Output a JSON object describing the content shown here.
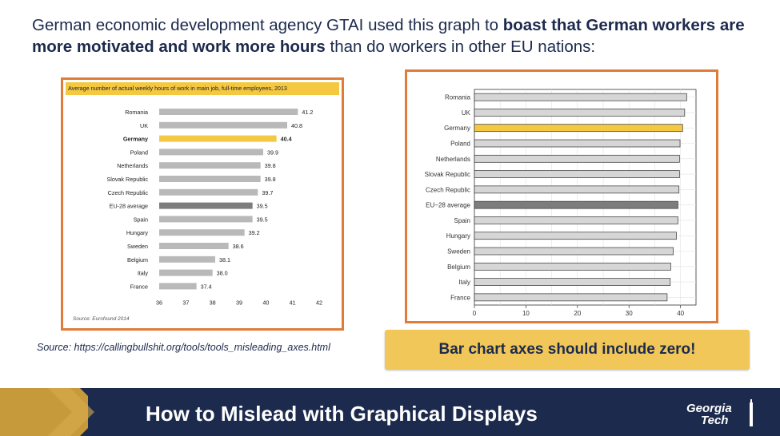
{
  "slide": {
    "headline_parts": [
      {
        "text": "German economic development agency GTAI used this graph to ",
        "bold": false
      },
      {
        "text": "boast that German workers are more motivated and work more hours",
        "bold": true
      },
      {
        "text": " than do workers in other EU nations:",
        "bold": false
      }
    ],
    "source_caption": "Source: https://callingbullshit.org/tools/tools_misleading_axes.html",
    "callout": "Bar chart axes should include zero!",
    "footer_title": "How to Mislead with Graphical Displays",
    "logo_line1": "Georgia",
    "logo_line2": "Tech"
  },
  "colors": {
    "navy": "#1c2a4d",
    "gold": "#c69a3a",
    "frame_orange": "#e07b39",
    "bar_gray": "#b9b9b9",
    "highlight_yellow": "#f5c842",
    "eu_dark": "#7d7d7d"
  },
  "chart_data": [
    {
      "type": "bar",
      "orientation": "horizontal",
      "title": "Average number of actual weekly hours of work in main job, full-time employees, 2013",
      "source": "Source: Eurofound 2014",
      "categories": [
        "Romania",
        "UK",
        "Germany",
        "Poland",
        "Netherlands",
        "Slovak Republic",
        "Czech Republic",
        "EU-28 average",
        "Spain",
        "Hungary",
        "Sweden",
        "Belgium",
        "Italy",
        "France"
      ],
      "values": [
        41.2,
        40.8,
        40.4,
        39.9,
        39.8,
        39.8,
        39.7,
        39.5,
        39.5,
        39.2,
        38.6,
        38.1,
        38.0,
        37.4
      ],
      "value_labels": [
        "41.2",
        "40.8",
        "40.4",
        "39.9",
        "39.8",
        "39.8",
        "39.7",
        "39.5",
        "39.5",
        "39.2",
        "38.6",
        "38.1",
        "38.0",
        "37.4"
      ],
      "highlight": "Germany",
      "reference": "EU-28 average",
      "xlim": [
        36,
        42
      ],
      "xticks": [
        "36",
        "37",
        "38",
        "39",
        "40",
        "41",
        "42"
      ],
      "grid": false
    },
    {
      "type": "bar",
      "orientation": "horizontal",
      "categories": [
        "Romania",
        "UK",
        "Germany",
        "Poland",
        "Netherlands",
        "Slovak Republic",
        "Czech Republic",
        "EU−28 average",
        "Spain",
        "Hungary",
        "Sweden",
        "Belgium",
        "Italy",
        "France"
      ],
      "values": [
        41.2,
        40.8,
        40.4,
        39.9,
        39.8,
        39.8,
        39.7,
        39.5,
        39.5,
        39.2,
        38.6,
        38.1,
        38.0,
        37.4
      ],
      "highlight": "Germany",
      "reference": "EU−28 average",
      "xlim": [
        0,
        43
      ],
      "xticks": [
        "0",
        "10",
        "20",
        "30",
        "40"
      ],
      "grid": true
    }
  ]
}
